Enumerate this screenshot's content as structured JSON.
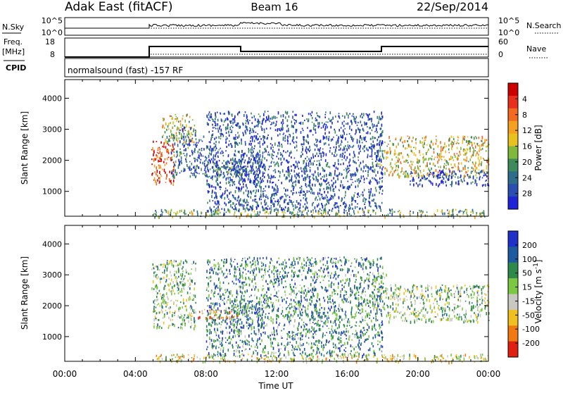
{
  "header": {
    "station": "Adak East (fitACF)",
    "beam": "Beam 16",
    "date": "22/Sep/2014"
  },
  "strip_panels": {
    "nsky": {
      "label": "N.Sky",
      "ticks_left": [
        "10^5",
        "10^0"
      ],
      "ticks_right": [
        "10^5",
        "10^0"
      ],
      "right_label": "N.Search"
    },
    "freq": {
      "label_top": "Freq.",
      "label_bottom": "[MHz]",
      "ticks_left": [
        "18",
        "8"
      ],
      "ticks_right": [
        "60",
        "0"
      ],
      "right_label": "Nave"
    },
    "cpid": {
      "label": "CPID",
      "text": "normalsound (fast) -157 RF"
    }
  },
  "chart_data": [
    {
      "type": "heatmap",
      "title": "",
      "xlabel": "",
      "ylabel": "Slant Range [km]",
      "yticks": [
        "1000",
        "2000",
        "3000",
        "4000"
      ],
      "ylim": [
        200,
        4600
      ],
      "xlim_hours": [
        0,
        24
      ],
      "colorbar": {
        "label": "Power [dB]",
        "ticks": [
          "4",
          "8",
          "12",
          "16",
          "20",
          "24",
          "28"
        ],
        "colors": [
          "#1f24d8",
          "#2a4fb0",
          "#2e6e8a",
          "#3d8a5a",
          "#7fb83a",
          "#e8c020",
          "#f4a020",
          "#f26a1f",
          "#e8301c",
          "#cc0000"
        ]
      },
      "scatter_regions": [
        {
          "t": [
            4.9,
            6.2
          ],
          "r": [
            1250,
            2700
          ],
          "level": 0.85
        },
        {
          "t": [
            5.5,
            7.4
          ],
          "r": [
            2600,
            3500
          ],
          "level": 0.5
        },
        {
          "t": [
            6.0,
            8.0
          ],
          "r": [
            1500,
            3100
          ],
          "level": 0.2
        },
        {
          "t": [
            8.0,
            10.0
          ],
          "r": [
            1500,
            2000
          ],
          "level": 0.35
        },
        {
          "t": [
            9.5,
            11.2
          ],
          "r": [
            1200,
            2300
          ],
          "level": 0.1
        },
        {
          "t": [
            17.5,
            18.1
          ],
          "r": [
            1800,
            2400
          ],
          "level": 0.35
        },
        {
          "t": [
            18.1,
            24.0
          ],
          "r": [
            1500,
            2800
          ],
          "level": 0.55
        },
        {
          "t": [
            19.5,
            24.0
          ],
          "r": [
            1200,
            1700
          ],
          "level": 0.1
        },
        {
          "t": [
            5.0,
            24.0
          ],
          "r": [
            200,
            450
          ],
          "level": 0.4
        },
        {
          "t": [
            8.0,
            18.0
          ],
          "r": [
            400,
            3600
          ],
          "level": 0.15
        }
      ]
    },
    {
      "type": "heatmap",
      "title": "",
      "xlabel": "Time UT",
      "ylabel": "Slant Range [km]",
      "yticks": [
        "1000",
        "2000",
        "3000",
        "4000"
      ],
      "xticks": [
        "00:00",
        "04:00",
        "08:00",
        "12:00",
        "16:00",
        "20:00",
        "00:00"
      ],
      "ylim": [
        200,
        4600
      ],
      "xlim_hours": [
        0,
        24
      ],
      "colorbar": {
        "label": "Velocity [m s^-1]",
        "ticks": [
          "200",
          "100",
          "50",
          "15",
          "-15",
          "-50",
          "-100",
          "-200"
        ],
        "colors": [
          "#2030c8",
          "#1e5aa0",
          "#2e8a4a",
          "#7cc840",
          "#c8c8c0",
          "#f0c020",
          "#f07a10",
          "#e02010"
        ]
      },
      "scatter_regions": [
        {
          "t": [
            4.9,
            7.4
          ],
          "r": [
            1300,
            3500
          ],
          "level": 0.45
        },
        {
          "t": [
            7.5,
            9.8
          ],
          "r": [
            1550,
            1900
          ],
          "level": 0.8
        },
        {
          "t": [
            9.5,
            11.2
          ],
          "r": [
            1200,
            2100
          ],
          "level": 0.25
        },
        {
          "t": [
            17.4,
            18.2
          ],
          "r": [
            1900,
            3100
          ],
          "level": 0.4
        },
        {
          "t": [
            18.2,
            24.0
          ],
          "r": [
            1500,
            2700
          ],
          "level": 0.45
        },
        {
          "t": [
            5.0,
            24.0
          ],
          "r": [
            200,
            450
          ],
          "level": 0.6
        },
        {
          "t": [
            8.0,
            18.0
          ],
          "r": [
            400,
            3600
          ],
          "level": 0.3
        }
      ]
    }
  ]
}
